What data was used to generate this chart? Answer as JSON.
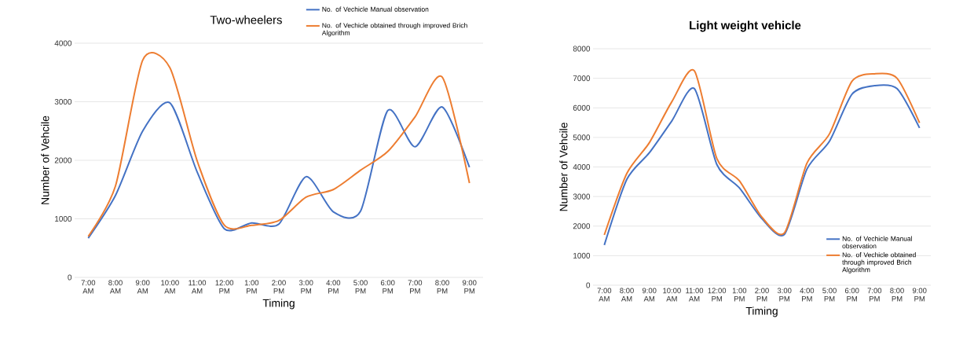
{
  "chart_data": [
    {
      "type": "line",
      "title": "Two-wheelers",
      "xlabel": "Timing",
      "ylabel": "Number of Vehcile",
      "categories": [
        "7:00 AM",
        "8:00 AM",
        "9:00 AM",
        "10:00 AM",
        "11:00 AM",
        "12:00 PM",
        "1:00 PM",
        "2:00 PM",
        "3:00 PM",
        "4:00 PM",
        "5:00 PM",
        "6:00 PM",
        "7:00 PM",
        "8:00 PM",
        "9:00 PM"
      ],
      "series": [
        {
          "name": "No. of Vechicle Manual  observation",
          "color": "#4472c4",
          "values": [
            670,
            1400,
            2500,
            2980,
            1800,
            830,
            930,
            910,
            1720,
            1120,
            1130,
            2850,
            2230,
            2910,
            1880
          ]
        },
        {
          "name": "No. of Vechicle obtained through improved Brich Algorithm",
          "color": "#ed7d31",
          "values": [
            700,
            1560,
            3710,
            3580,
            1990,
            890,
            890,
            970,
            1370,
            1500,
            1830,
            2150,
            2740,
            3420,
            1610
          ]
        }
      ],
      "ylim": [
        0,
        4000
      ],
      "yticks": [
        0,
        1000,
        2000,
        3000,
        4000
      ],
      "grid": "y",
      "legend": "top right",
      "marker": "none",
      "line_style": "solid"
    },
    {
      "type": "line",
      "title": "Light weight vehicle",
      "xlabel": "Timing",
      "ylabel": "Number of Vehcile",
      "categories": [
        "7:00 AM",
        "8:00 AM",
        "9:00 AM",
        "10:00 AM",
        "11:00 AM",
        "12:00 PM",
        "1:00 PM",
        "2:00 PM",
        "3:00 PM",
        "4:00 PM",
        "5:00 PM",
        "6:00 PM",
        "7:00 PM",
        "8:00 PM",
        "9:00 PM"
      ],
      "series": [
        {
          "name": "No. of Vechicle Manual observation",
          "color": "#4472c4",
          "values": [
            1360,
            3580,
            4480,
            5560,
            6650,
            4080,
            3290,
            2250,
            1720,
            3930,
            4870,
            6460,
            6750,
            6650,
            5320
          ]
        },
        {
          "name": "No. of Vechicle obtained through improved Brich Algorithm",
          "color": "#ed7d31",
          "values": [
            1700,
            3780,
            4820,
            6210,
            7250,
            4280,
            3530,
            2300,
            1770,
            4130,
            5120,
            6900,
            7150,
            7000,
            5490
          ]
        }
      ],
      "ylim": [
        0,
        8000
      ],
      "yticks": [
        0,
        1000,
        2000,
        3000,
        4000,
        5000,
        6000,
        7000,
        8000
      ],
      "grid": "y",
      "legend": "bottom right",
      "marker": "none",
      "line_style": "solid"
    }
  ]
}
